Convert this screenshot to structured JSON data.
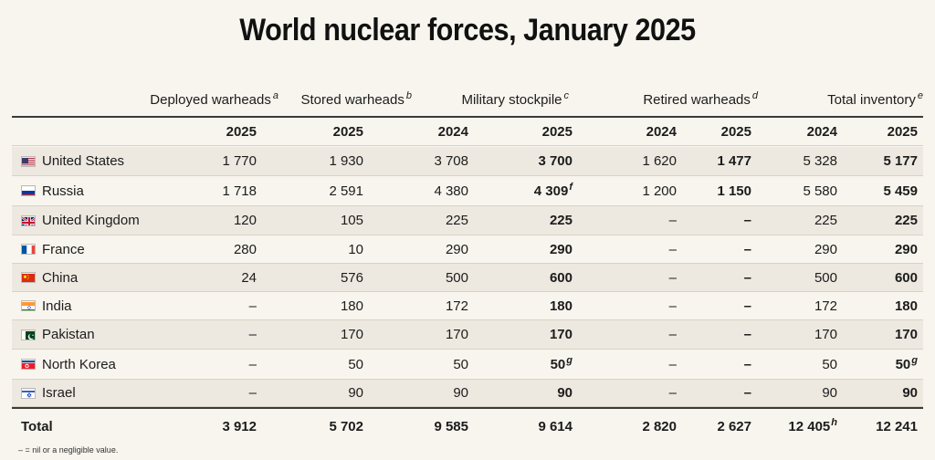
{
  "title": "World nuclear forces, January 2025",
  "groups": [
    {
      "label": "Deployed warheads",
      "note": "a"
    },
    {
      "label": "Stored warheads",
      "note": "b"
    },
    {
      "label": "Military stockpile",
      "note": "c"
    },
    {
      "label": "Retired warheads",
      "note": "d"
    },
    {
      "label": "Total inventory",
      "note": "e"
    }
  ],
  "years": [
    "2025",
    "2025",
    "2024",
    "2025",
    "2024",
    "2025",
    "2024",
    "2025"
  ],
  "countries": [
    {
      "name": "United States",
      "flag": "us-flag-icon",
      "values": [
        "1 770",
        "1 930",
        "3 708",
        "3 700",
        "1 620",
        "1 477",
        "5 328",
        "5 177"
      ],
      "notes": [
        "",
        "",
        "",
        "",
        "",
        "",
        "",
        ""
      ]
    },
    {
      "name": "Russia",
      "flag": "russia-flag-icon",
      "values": [
        "1 718",
        "2 591",
        "4 380",
        "4 309",
        "1 200",
        "1 150",
        "5 580",
        "5 459"
      ],
      "notes": [
        "",
        "",
        "",
        "f",
        "",
        "",
        "",
        ""
      ]
    },
    {
      "name": "United Kingdom",
      "flag": "uk-flag-icon",
      "values": [
        "120",
        "105",
        "225",
        "225",
        "–",
        "–",
        "225",
        "225"
      ],
      "notes": [
        "",
        "",
        "",
        "",
        "",
        "",
        "",
        ""
      ]
    },
    {
      "name": "France",
      "flag": "france-flag-icon",
      "values": [
        "280",
        "10",
        "290",
        "290",
        "–",
        "–",
        "290",
        "290"
      ],
      "notes": [
        "",
        "",
        "",
        "",
        "",
        "",
        "",
        ""
      ]
    },
    {
      "name": "China",
      "flag": "china-flag-icon",
      "values": [
        "24",
        "576",
        "500",
        "600",
        "–",
        "–",
        "500",
        "600"
      ],
      "notes": [
        "",
        "",
        "",
        "",
        "",
        "",
        "",
        ""
      ]
    },
    {
      "name": "India",
      "flag": "india-flag-icon",
      "values": [
        "–",
        "180",
        "172",
        "180",
        "–",
        "–",
        "172",
        "180"
      ],
      "notes": [
        "",
        "",
        "",
        "",
        "",
        "",
        "",
        ""
      ]
    },
    {
      "name": "Pakistan",
      "flag": "pakistan-flag-icon",
      "values": [
        "–",
        "170",
        "170",
        "170",
        "–",
        "–",
        "170",
        "170"
      ],
      "notes": [
        "",
        "",
        "",
        "",
        "",
        "",
        "",
        ""
      ]
    },
    {
      "name": "North Korea",
      "flag": "north-korea-flag-icon",
      "values": [
        "–",
        "50",
        "50",
        "50",
        "–",
        "–",
        "50",
        "50"
      ],
      "notes": [
        "",
        "",
        "",
        "g",
        "",
        "",
        "",
        "g"
      ]
    },
    {
      "name": "Israel",
      "flag": "israel-flag-icon",
      "values": [
        "–",
        "90",
        "90",
        "90",
        "–",
        "–",
        "90",
        "90"
      ],
      "notes": [
        "",
        "",
        "",
        "",
        "",
        "",
        "",
        ""
      ]
    }
  ],
  "total": {
    "label": "Total",
    "values": [
      "3 912",
      "5 702",
      "9 585",
      "9 614",
      "2 820",
      "2 627",
      "12 405",
      "12 241"
    ],
    "notes": [
      "",
      "",
      "",
      "",
      "",
      "",
      "h",
      ""
    ]
  },
  "footnote": "– = nil or a negligible value.",
  "colors": {
    "background": "#f8f5ee",
    "alt_row": "#ede9e0",
    "rule": "#3a3a3a"
  }
}
